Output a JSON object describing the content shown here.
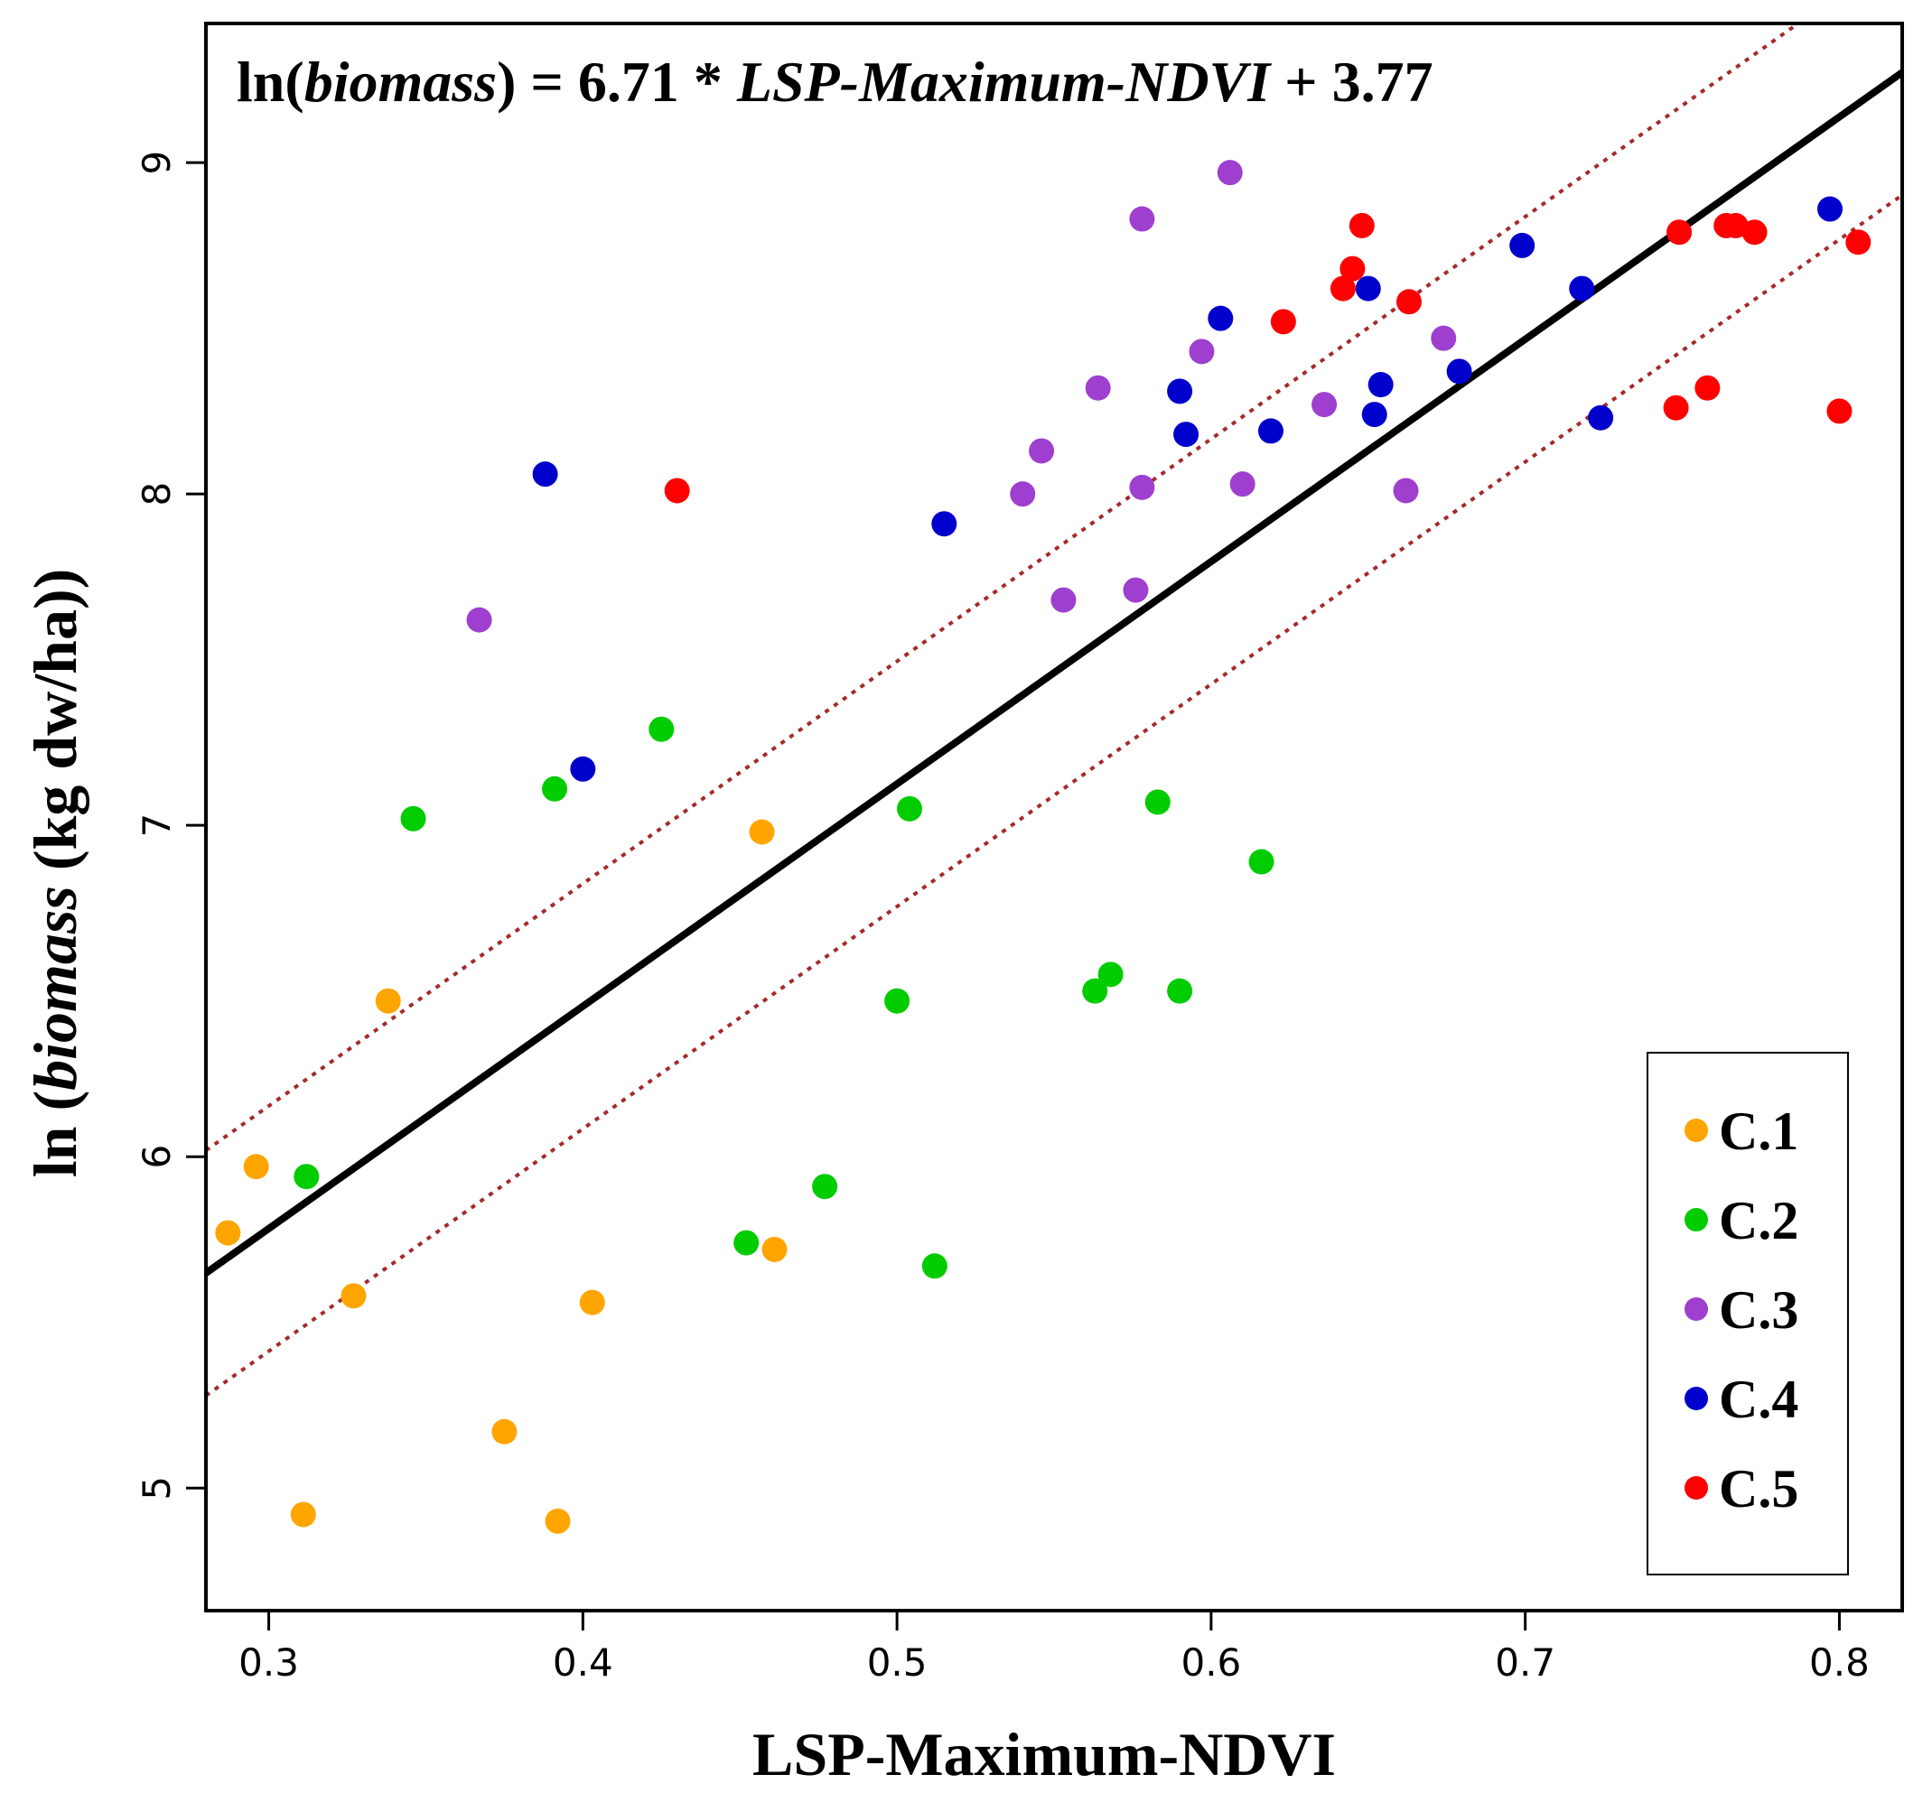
{
  "chart_data": {
    "type": "scatter",
    "title": "",
    "equation": {
      "lhs_prefix": "ln(",
      "lhs_var": "biomass",
      "lhs_suffix": ") = 6.71 * ",
      "rhs_var": "LSP-Maximum-NDVI",
      "rhs_suffix": " + 3.77"
    },
    "xlabel": "LSP-Maximum-NDVI",
    "ylabel": {
      "prefix": "ln (",
      "var": "biomass",
      "suffix": " (kg dw/ha))"
    },
    "xlim": [
      0.28,
      0.82
    ],
    "ylim": [
      4.63,
      9.42
    ],
    "xticks": [
      0.3,
      0.4,
      0.5,
      0.6,
      0.7,
      0.8
    ],
    "xtick_labels": [
      "0.3",
      "0.4",
      "0.5",
      "0.6",
      "0.7",
      "0.8"
    ],
    "yticks": [
      5,
      6,
      7,
      8,
      9
    ],
    "ytick_labels": [
      "5",
      "6",
      "7",
      "8",
      "9"
    ],
    "legend_position": "bottom-right",
    "regression": {
      "slope": 6.71,
      "intercept": 3.77,
      "color": "#000000"
    },
    "confidence_band": {
      "lower_offset": -0.37,
      "upper_offset": 0.37,
      "color": "#a52a2a"
    },
    "series": [
      {
        "name": "C.1",
        "color": "#ffa500",
        "points": [
          [
            0.287,
            5.77
          ],
          [
            0.296,
            5.97
          ],
          [
            0.311,
            4.92
          ],
          [
            0.327,
            5.58
          ],
          [
            0.338,
            6.47
          ],
          [
            0.375,
            5.17
          ],
          [
            0.392,
            4.9
          ],
          [
            0.403,
            5.56
          ],
          [
            0.457,
            6.98
          ],
          [
            0.461,
            5.72
          ]
        ]
      },
      {
        "name": "C.2",
        "color": "#00cc00",
        "points": [
          [
            0.312,
            5.94
          ],
          [
            0.346,
            7.02
          ],
          [
            0.391,
            7.11
          ],
          [
            0.425,
            7.29
          ],
          [
            0.452,
            5.74
          ],
          [
            0.477,
            5.91
          ],
          [
            0.5,
            6.47
          ],
          [
            0.504,
            7.05
          ],
          [
            0.512,
            5.67
          ],
          [
            0.563,
            6.5
          ],
          [
            0.568,
            6.55
          ],
          [
            0.583,
            7.07
          ],
          [
            0.59,
            6.5
          ],
          [
            0.616,
            6.89
          ]
        ]
      },
      {
        "name": "C.3",
        "color": "#9f3fcf",
        "points": [
          [
            0.367,
            7.62
          ],
          [
            0.54,
            8.0
          ],
          [
            0.546,
            8.13
          ],
          [
            0.553,
            7.68
          ],
          [
            0.564,
            8.32
          ],
          [
            0.576,
            7.71
          ],
          [
            0.578,
            8.83
          ],
          [
            0.578,
            8.02
          ],
          [
            0.597,
            8.43
          ],
          [
            0.606,
            8.97
          ],
          [
            0.61,
            8.03
          ],
          [
            0.636,
            8.27
          ],
          [
            0.662,
            8.01
          ],
          [
            0.674,
            8.47
          ]
        ]
      },
      {
        "name": "C.4",
        "color": "#0000cc",
        "points": [
          [
            0.388,
            8.06
          ],
          [
            0.4,
            7.17
          ],
          [
            0.515,
            7.91
          ],
          [
            0.59,
            8.31
          ],
          [
            0.592,
            8.18
          ],
          [
            0.603,
            8.53
          ],
          [
            0.619,
            8.19
          ],
          [
            0.65,
            8.62
          ],
          [
            0.652,
            8.24
          ],
          [
            0.654,
            8.33
          ],
          [
            0.679,
            8.37
          ],
          [
            0.699,
            8.75
          ],
          [
            0.718,
            8.62
          ],
          [
            0.724,
            8.23
          ],
          [
            0.797,
            8.86
          ]
        ]
      },
      {
        "name": "C.5",
        "color": "#ff0000",
        "points": [
          [
            0.43,
            8.01
          ],
          [
            0.623,
            8.52
          ],
          [
            0.642,
            8.62
          ],
          [
            0.645,
            8.68
          ],
          [
            0.648,
            8.81
          ],
          [
            0.663,
            8.58
          ],
          [
            0.748,
            8.26
          ],
          [
            0.749,
            8.79
          ],
          [
            0.758,
            8.32
          ],
          [
            0.764,
            8.81
          ],
          [
            0.767,
            8.81
          ],
          [
            0.773,
            8.79
          ],
          [
            0.8,
            8.25
          ],
          [
            0.806,
            8.76
          ]
        ]
      }
    ]
  }
}
